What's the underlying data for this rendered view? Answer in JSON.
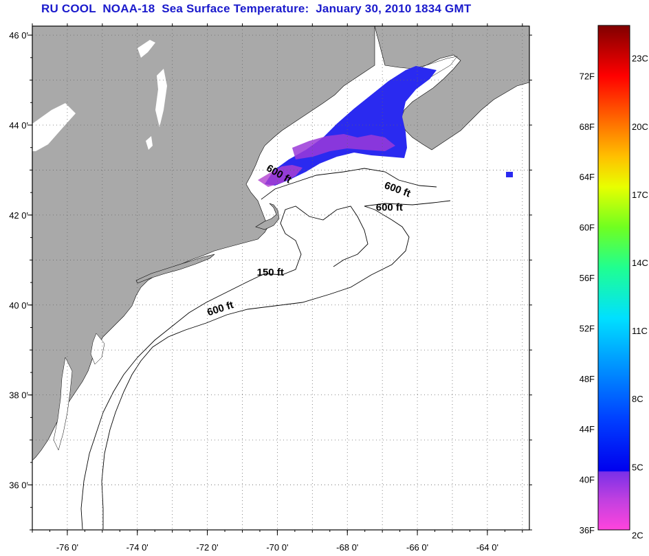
{
  "title": "RU COOL  NOAA-18  Sea Surface Temperature:  January 30, 2010 1834 GMT",
  "map": {
    "lat_range": [
      35,
      46.2
    ],
    "lon_range": [
      -77,
      -62.8
    ],
    "lat_ticks": [
      {
        "value": 46,
        "label": "46 0'"
      },
      {
        "value": 44,
        "label": "44 0'"
      },
      {
        "value": 42,
        "label": "42 0'"
      },
      {
        "value": 40,
        "label": "40 0'"
      },
      {
        "value": 38,
        "label": "38 0'"
      },
      {
        "value": 36,
        "label": "36 0'"
      }
    ],
    "lon_ticks": [
      {
        "value": -76,
        "label": "-76 0'"
      },
      {
        "value": -74,
        "label": "-74 0'"
      },
      {
        "value": -72,
        "label": "-72 0'"
      },
      {
        "value": -70,
        "label": "-70 0'"
      },
      {
        "value": -68,
        "label": "-68 0'"
      },
      {
        "value": -66,
        "label": "-66 0'"
      },
      {
        "value": -64,
        "label": "-64 0'"
      }
    ],
    "colors": {
      "land": "#a9a9a9",
      "water": "#ffffff",
      "sst_blue": "#2a2af0",
      "sst_purple": "#9a3ad8"
    },
    "contour_labels": [
      {
        "text": "600 ft",
        "lon": -70.0,
        "lat": 42.85,
        "rotate": 30
      },
      {
        "text": "600 ft",
        "lon": -66.6,
        "lat": 42.5,
        "rotate": 20
      },
      {
        "text": "600 ft",
        "lon": -66.8,
        "lat": 42.1,
        "rotate": 0
      },
      {
        "text": "150 ft",
        "lon": -70.2,
        "lat": 40.65,
        "rotate": 0
      },
      {
        "text": "600 ft",
        "lon": -71.6,
        "lat": 39.85,
        "rotate": -18
      }
    ]
  },
  "colorbar": {
    "fahrenheit": [
      {
        "value": 72,
        "label": "72F"
      },
      {
        "value": 68,
        "label": "68F"
      },
      {
        "value": 64,
        "label": "64F"
      },
      {
        "value": 60,
        "label": "60F"
      },
      {
        "value": 56,
        "label": "56F"
      },
      {
        "value": 52,
        "label": "52F"
      },
      {
        "value": 48,
        "label": "48F"
      },
      {
        "value": 44,
        "label": "44F"
      },
      {
        "value": 40,
        "label": "40F"
      },
      {
        "value": 36,
        "label": "36F"
      }
    ],
    "celsius": [
      {
        "value": 23,
        "label": "23C"
      },
      {
        "value": 20,
        "label": "20C"
      },
      {
        "value": 17,
        "label": "17C"
      },
      {
        "value": 14,
        "label": "14C"
      },
      {
        "value": 11,
        "label": "11C"
      },
      {
        "value": 8,
        "label": "8C"
      },
      {
        "value": 5,
        "label": "5C"
      },
      {
        "value": 2,
        "label": "2C"
      }
    ],
    "range_f": [
      36,
      76
    ]
  }
}
